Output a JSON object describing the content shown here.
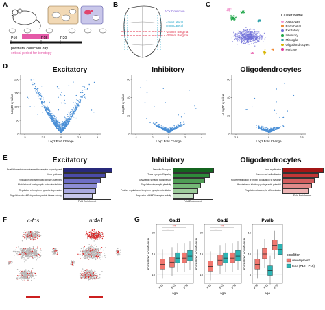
{
  "panels": {
    "A": "A",
    "B": "B",
    "C": "C",
    "D": "D",
    "E": "E",
    "F": "F",
    "G": "G"
  },
  "panelA": {
    "ages": [
      "P10",
      "P15",
      "P20"
    ],
    "label1": "postnatal collection day",
    "label2": "critical period for tonotopy",
    "colors": {
      "critical": "#e55aa8",
      "timeline": "#111111"
    }
  },
  "panelB": {
    "lines": [
      "ACx Collection",
      "4mm Lateral",
      "5mm Lateral",
      "-2.5mm Bregma",
      "-3.5mm Bregma"
    ],
    "colors": {
      "acx": "#7b5bd6",
      "lateral": "#1aa3c9",
      "bregma": "#e0304a"
    }
  },
  "panelC": {
    "legend_title": "Cluster Name",
    "clusters": [
      {
        "name": "Astrocytes",
        "color": "#f29ad0"
      },
      {
        "name": "Endothelial",
        "color": "#f08a35"
      },
      {
        "name": "Excitatory",
        "color": "#6f6fd8"
      },
      {
        "name": "Inhibitory",
        "color": "#1fa64a"
      },
      {
        "name": "Microglia",
        "color": "#2aa0a8"
      },
      {
        "name": "Oligodendrocytes",
        "color": "#d7b400"
      },
      {
        "name": "Pericyte",
        "color": "#e23d9c"
      }
    ]
  },
  "panelD": {
    "titles": [
      "Excitatory",
      "Inhibitory",
      "Oligodendrocytes"
    ],
    "ylabel": "−Log10 q value",
    "xlabel": "Log2 Fold Change",
    "ticks_x": [
      [
        "-5",
        "-2.5",
        "0",
        "2.5",
        "5"
      ],
      [
        "-4",
        "-2",
        "0",
        "2",
        "4"
      ],
      [
        "-2.5",
        "0",
        "2.5"
      ]
    ],
    "ticks_y": [
      [
        "0",
        "50",
        "100",
        "150",
        "200"
      ],
      [
        "0",
        "20",
        "40",
        "60"
      ],
      [
        "0",
        "20",
        "40",
        "60"
      ]
    ],
    "point_color": "#4a8fd6"
  },
  "panelE": {
    "titles": [
      "Excitatory",
      "Inhibitory",
      "Oligodendrocytes"
    ],
    "xlabel": "Fold Enrichment",
    "terms": [
      [
        "Establishment of neurotransmitter receptor to postsynaptic membrane",
        "Axon guidance",
        "Regulation of postsynaptic density assembly",
        "Modulation of postsynaptic actin cytoskeleton",
        "Regulation of long-term synaptic depression",
        "Regulation of cAMP-dependent protein kinase activity"
      ],
      [
        "Dendritic Transport",
        "Trans-synaptic Signaling",
        "GABAergic synaptic transmission",
        "Regulation of synaptic plasticity",
        "Positive regulation of long-term synaptic potentiation",
        "Regulation of NMDA receptor activity"
      ],
      [
        "Axon myelination",
        "Neuron cell-cell adhesion",
        "Positive regulation of protein localization to synapse",
        "Modulation of inhibitory postsynaptic potential",
        "Regulation of astrocyte differentiation"
      ]
    ],
    "values": [
      [
        10,
        8.5,
        7.5,
        6.8,
        6.5,
        5.8
      ],
      [
        9,
        8,
        7,
        6,
        5.5,
        4.5
      ],
      [
        10,
        8.8,
        7.8,
        7,
        6.2
      ]
    ],
    "colors": [
      [
        "#28297a",
        "#4b4ba8",
        "#6e6ec4",
        "#8d8dd4",
        "#aaaae0",
        "#c8c8ec"
      ],
      [
        "#14641f",
        "#2e8a3a",
        "#4f9e55",
        "#75b877",
        "#9ccc9a",
        "#c4e0c2"
      ],
      [
        "#a31515",
        "#c23636",
        "#d25e5e",
        "#e08a8a",
        "#edb4b4"
      ]
    ]
  },
  "panelF": {
    "genes": [
      "c-fos",
      "nr4a1"
    ],
    "point_color": "#d92828",
    "bg_color": "#b8b8b8"
  },
  "panelG": {
    "genes": [
      "Gad1",
      "Gad2",
      "Pvalb"
    ],
    "ylabel": "normalized count value",
    "xlabel": "age",
    "ages": [
      "P10",
      "P15",
      "P20"
    ],
    "legend_title": "condition",
    "legend": [
      {
        "name": "development",
        "color": "#f1776f"
      },
      {
        "name": "tone (P12 - P15)",
        "color": "#2bb5b5"
      }
    ],
    "sig": "***",
    "gad_ticks": [
      "10",
      "15",
      "20"
    ],
    "pvalb_ticks": [
      "5",
      "10",
      "15"
    ],
    "chart_data": [
      {
        "type": "box",
        "title": "Gad1",
        "categories": [
          "P10",
          "P15",
          "P20"
        ],
        "series": [
          {
            "name": "development",
            "medians": [
              12.5,
              13,
              14
            ]
          },
          {
            "name": "tone (P12 - P15)",
            "medians": [
              null,
              14,
              14.5
            ]
          }
        ]
      },
      {
        "type": "box",
        "title": "Gad2",
        "categories": [
          "P10",
          "P15",
          "P20"
        ],
        "series": [
          {
            "name": "development",
            "medians": [
              12,
              13.5,
              14
            ]
          },
          {
            "name": "tone (P12 - P15)",
            "medians": [
              null,
              14,
              14.5
            ]
          }
        ]
      },
      {
        "type": "box",
        "title": "Pvalb",
        "categories": [
          "P10",
          "P15",
          "P20"
        ],
        "series": [
          {
            "name": "development",
            "medians": [
              7.5,
              10,
              12
            ]
          },
          {
            "name": "tone (P12 - P15)",
            "medians": [
              null,
              6,
              11
            ]
          }
        ]
      }
    ]
  }
}
